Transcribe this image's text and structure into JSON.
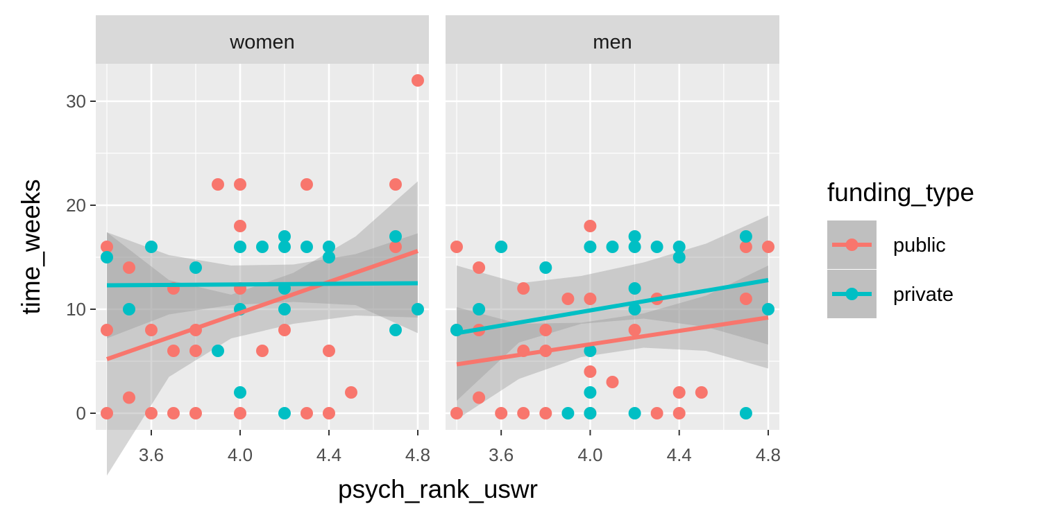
{
  "chart_data": {
    "type": "scatter",
    "xlabel": "psych_rank_uswr",
    "ylabel": "time_weeks",
    "x_ticks": [
      3.6,
      4.0,
      4.4,
      4.8
    ],
    "x_tick_labels": [
      "3.6",
      "4.0",
      "4.4",
      "4.8"
    ],
    "y_ticks": [
      0,
      10,
      20,
      30
    ],
    "y_tick_labels": [
      "0",
      "10",
      "20",
      "30"
    ],
    "xlim": [
      3.35,
      4.85
    ],
    "ylim": [
      -1.6,
      33.6
    ],
    "grid": true,
    "legend": {
      "title": "funding_type",
      "position": "right",
      "entries": [
        {
          "label": "public",
          "color": "#F8766D"
        },
        {
          "label": "private",
          "color": "#00BFC4"
        }
      ]
    },
    "panels": [
      {
        "label": "women",
        "series": [
          {
            "name": "public",
            "color": "#F8766D",
            "points": [
              [
                3.4,
                16
              ],
              [
                3.4,
                8
              ],
              [
                3.4,
                0
              ],
              [
                3.5,
                14
              ],
              [
                3.5,
                1.5
              ],
              [
                3.6,
                8
              ],
              [
                3.6,
                0
              ],
              [
                3.7,
                12
              ],
              [
                3.7,
                6
              ],
              [
                3.7,
                0
              ],
              [
                3.8,
                8
              ],
              [
                3.8,
                6
              ],
              [
                3.8,
                0
              ],
              [
                3.9,
                22
              ],
              [
                4.0,
                22
              ],
              [
                4.0,
                18
              ],
              [
                4.0,
                12
              ],
              [
                4.0,
                0
              ],
              [
                4.1,
                6
              ],
              [
                4.2,
                8
              ],
              [
                4.3,
                22
              ],
              [
                4.3,
                0
              ],
              [
                4.4,
                6
              ],
              [
                4.4,
                0
              ],
              [
                4.5,
                2
              ],
              [
                4.7,
                22
              ],
              [
                4.7,
                16
              ],
              [
                4.8,
                32
              ]
            ],
            "fit": {
              "x": [
                3.4,
                4.8
              ],
              "y": [
                5.2,
                15.6
              ]
            },
            "ci_upper": [
              17.4,
              12.8,
              11.4,
              13.5,
              17.0,
              22.3
            ],
            "ci_lower": [
              -6.0,
              3.5,
              7.2,
              8.6,
              9.4,
              9.2
            ]
          },
          {
            "name": "private",
            "color": "#00BFC4",
            "points": [
              [
                3.4,
                15
              ],
              [
                3.5,
                10
              ],
              [
                3.6,
                16
              ],
              [
                3.8,
                14
              ],
              [
                3.9,
                6
              ],
              [
                4.0,
                16
              ],
              [
                4.0,
                10
              ],
              [
                4.0,
                2
              ],
              [
                4.1,
                16
              ],
              [
                4.2,
                17
              ],
              [
                4.2,
                16
              ],
              [
                4.2,
                12
              ],
              [
                4.2,
                10
              ],
              [
                4.2,
                0
              ],
              [
                4.3,
                16
              ],
              [
                4.4,
                16
              ],
              [
                4.4,
                15
              ],
              [
                4.7,
                17
              ],
              [
                4.7,
                8
              ],
              [
                4.8,
                10
              ]
            ],
            "fit": {
              "x": [
                3.4,
                4.8
              ],
              "y": [
                12.3,
                12.5
              ]
            },
            "ci_upper": [
              17.4,
              15.2,
              14.2,
              14.3,
              15.3,
              17.3
            ],
            "ci_lower": [
              7.2,
              9.5,
              10.4,
              10.7,
              10.4,
              7.7
            ]
          }
        ]
      },
      {
        "label": "men",
        "series": [
          {
            "name": "public",
            "color": "#F8766D",
            "points": [
              [
                3.4,
                16
              ],
              [
                3.4,
                8
              ],
              [
                3.4,
                0
              ],
              [
                3.5,
                14
              ],
              [
                3.5,
                8
              ],
              [
                3.5,
                1.5
              ],
              [
                3.6,
                0
              ],
              [
                3.7,
                12
              ],
              [
                3.7,
                6
              ],
              [
                3.7,
                0
              ],
              [
                3.8,
                8
              ],
              [
                3.8,
                6
              ],
              [
                3.8,
                0
              ],
              [
                3.9,
                11
              ],
              [
                4.0,
                18
              ],
              [
                4.0,
                11
              ],
              [
                4.0,
                4
              ],
              [
                4.0,
                0
              ],
              [
                4.1,
                3
              ],
              [
                4.2,
                8
              ],
              [
                4.3,
                11
              ],
              [
                4.3,
                0
              ],
              [
                4.4,
                2
              ],
              [
                4.4,
                0
              ],
              [
                4.5,
                2
              ],
              [
                4.7,
                16
              ],
              [
                4.7,
                11
              ],
              [
                4.8,
                16
              ]
            ],
            "fit": {
              "x": [
                3.4,
                4.8
              ],
              "y": [
                4.7,
                9.2
              ]
            },
            "ci_upper": [
              10.2,
              8.6,
              8.7,
              9.6,
              11.3,
              14.2
            ],
            "ci_lower": [
              -0.6,
              3.3,
              5.4,
              6.3,
              6.0,
              4.3
            ]
          },
          {
            "name": "private",
            "color": "#00BFC4",
            "points": [
              [
                3.4,
                8
              ],
              [
                3.5,
                10
              ],
              [
                3.6,
                16
              ],
              [
                3.8,
                14
              ],
              [
                3.9,
                0
              ],
              [
                4.0,
                16
              ],
              [
                4.0,
                6
              ],
              [
                4.0,
                2
              ],
              [
                4.0,
                0
              ],
              [
                4.1,
                16
              ],
              [
                4.2,
                17
              ],
              [
                4.2,
                16
              ],
              [
                4.2,
                12
              ],
              [
                4.2,
                10
              ],
              [
                4.2,
                0
              ],
              [
                4.3,
                16
              ],
              [
                4.4,
                16
              ],
              [
                4.4,
                15
              ],
              [
                4.7,
                17
              ],
              [
                4.7,
                0
              ],
              [
                4.8,
                10
              ]
            ],
            "fit": {
              "x": [
                3.4,
                4.8
              ],
              "y": [
                7.7,
                12.8
              ]
            },
            "ci_upper": [
              14.2,
              12.5,
              13.2,
              14.5,
              16.3,
              19.0
            ],
            "ci_lower": [
              1.2,
              6.8,
              8.6,
              9.1,
              8.3,
              6.6
            ]
          }
        ]
      }
    ]
  }
}
